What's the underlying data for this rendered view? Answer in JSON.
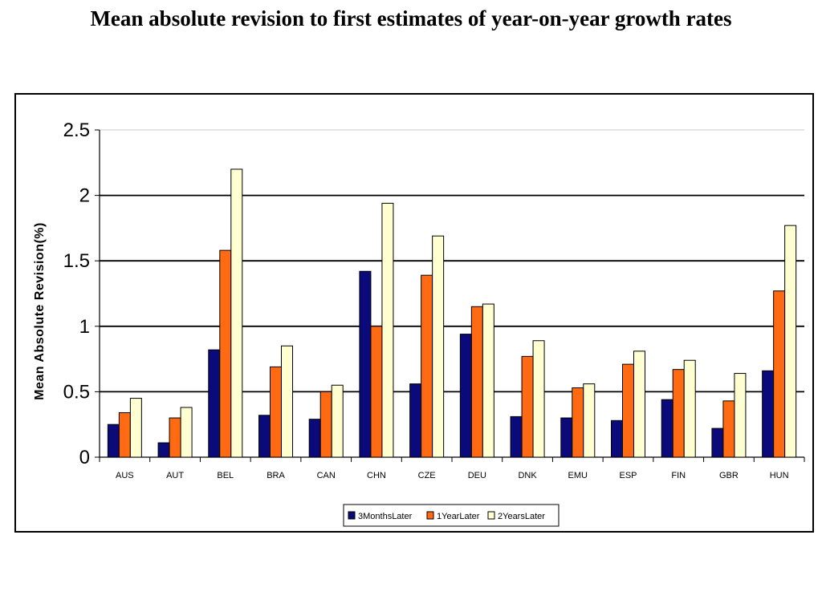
{
  "page": {
    "title": "Mean absolute revision to first estimates of year-on-year growth rates"
  },
  "chart_data": {
    "type": "bar",
    "title": "",
    "xlabel": "",
    "ylabel": "Mean Absolute Revision(%)",
    "ylim": [
      0,
      2.5
    ],
    "yticks": [
      "0",
      "0.5",
      "1",
      "1.5",
      "2",
      "2.5"
    ],
    "grid": "horizontal",
    "legend_position": "bottom",
    "categories": [
      "AUS",
      "AUT",
      "BEL",
      "BRA",
      "CAN",
      "CHN",
      "CZE",
      "DEU",
      "DNK",
      "EMU",
      "ESP",
      "FIN",
      "GBR",
      "HUN"
    ],
    "series": [
      {
        "name": "3MonthsLater",
        "color": "#0a0a7a",
        "values": [
          0.25,
          0.11,
          0.82,
          0.32,
          0.29,
          1.42,
          0.56,
          0.94,
          0.31,
          0.3,
          0.28,
          0.44,
          0.22,
          0.66
        ]
      },
      {
        "name": "1YearLater",
        "color": "#ff6a13",
        "values": [
          0.34,
          0.3,
          1.58,
          0.69,
          0.5,
          1.0,
          1.39,
          1.15,
          0.77,
          0.53,
          0.71,
          0.67,
          0.43,
          1.27
        ]
      },
      {
        "name": "2YearsLater",
        "color": "#ffffd2",
        "values": [
          0.45,
          0.38,
          2.2,
          0.85,
          0.55,
          1.94,
          1.69,
          1.17,
          0.89,
          0.56,
          0.81,
          0.74,
          0.64,
          1.77
        ]
      }
    ]
  }
}
